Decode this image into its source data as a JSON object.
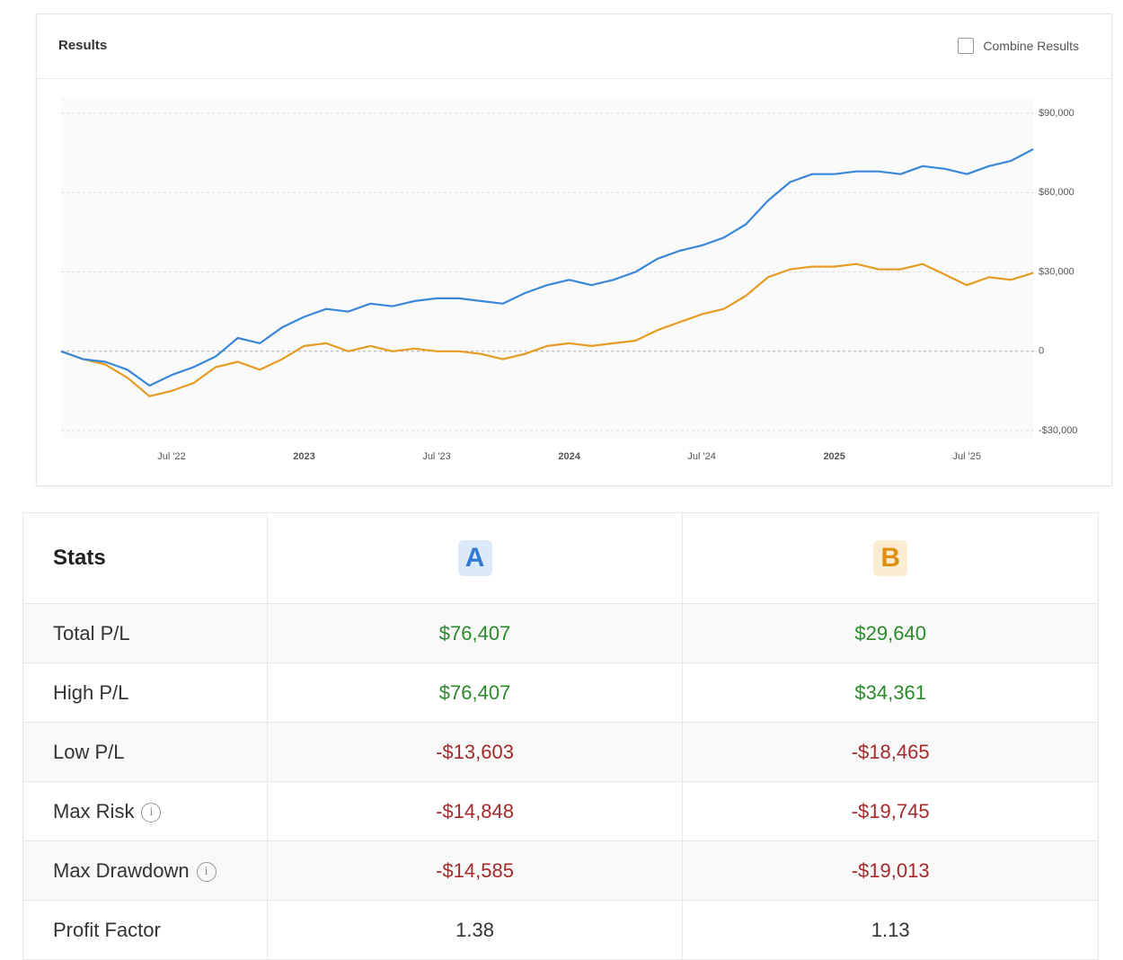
{
  "header": {
    "title": "Results",
    "combine_label": "Combine Results"
  },
  "chart_data": {
    "type": "line",
    "x": [
      "2022-02",
      "2022-03",
      "2022-04",
      "2022-05",
      "2022-06",
      "2022-07",
      "2022-08",
      "2022-09",
      "2022-10",
      "2022-11",
      "2022-12",
      "2023-01",
      "2023-02",
      "2023-03",
      "2023-04",
      "2023-05",
      "2023-06",
      "2023-07",
      "2023-08",
      "2023-09",
      "2023-10",
      "2023-11",
      "2023-12",
      "2024-01",
      "2024-02",
      "2024-03",
      "2024-04",
      "2024-05",
      "2024-06",
      "2024-07",
      "2024-08",
      "2024-09",
      "2024-10",
      "2024-11",
      "2024-12",
      "2025-01",
      "2025-02",
      "2025-03",
      "2025-04",
      "2025-05",
      "2025-06",
      "2025-07",
      "2025-08",
      "2025-09",
      "2025-10"
    ],
    "series": [
      {
        "name": "A",
        "color": "#3a87d9",
        "values": [
          0,
          -3000,
          -4000,
          -7000,
          -13000,
          -9000,
          -6000,
          -2000,
          5000,
          3000,
          9000,
          13000,
          16000,
          15000,
          18000,
          17000,
          19000,
          20000,
          20000,
          19000,
          18000,
          22000,
          25000,
          27000,
          25000,
          27000,
          30000,
          35000,
          38000,
          40000,
          43000,
          48000,
          57000,
          64000,
          67000,
          67000,
          68000,
          68000,
          67000,
          70000,
          69000,
          67000,
          70000,
          72000,
          76407
        ]
      },
      {
        "name": "B",
        "color": "#e69b22",
        "values": [
          0,
          -3000,
          -5000,
          -10000,
          -17000,
          -15000,
          -12000,
          -6000,
          -4000,
          -7000,
          -3000,
          2000,
          3000,
          0,
          2000,
          0,
          1000,
          0,
          0,
          -1000,
          -3000,
          -1000,
          2000,
          3000,
          2000,
          3000,
          4000,
          8000,
          11000,
          14000,
          16000,
          21000,
          28000,
          31000,
          32000,
          32000,
          33000,
          31000,
          31000,
          33000,
          29000,
          25000,
          28000,
          27000,
          29640
        ]
      }
    ],
    "xlim": [
      "2022-02",
      "2025-10"
    ],
    "xticks": [
      {
        "value": "2022-07",
        "label": "Jul '22"
      },
      {
        "value": "2023-01",
        "label": "2023"
      },
      {
        "value": "2023-07",
        "label": "Jul '23"
      },
      {
        "value": "2024-01",
        "label": "2024"
      },
      {
        "value": "2024-07",
        "label": "Jul '24"
      },
      {
        "value": "2025-01",
        "label": "2025"
      },
      {
        "value": "2025-07",
        "label": "Jul '25"
      }
    ],
    "ylim": [
      -30000,
      90000
    ],
    "yticks": [
      {
        "value": -30000,
        "label": "-$30,000"
      },
      0,
      {
        "value": 30000,
        "label": "$30,000"
      },
      {
        "value": 60000,
        "label": "$60,000"
      },
      {
        "value": 90000,
        "label": "$90,000"
      }
    ],
    "grid": true
  },
  "table": {
    "header": "Stats",
    "rows": [
      [
        "Total P/L",
        "$76,407",
        "$29,640"
      ],
      [
        "High P/L",
        "$76,407",
        "$34,361"
      ],
      [
        "Low P/L",
        "-$13,603",
        "-$18,465"
      ],
      [
        "Max Risk",
        "-$14,848",
        "-$19,745"
      ],
      [
        "Max Drawdown",
        "-$14,585",
        "-$19,013"
      ],
      [
        "Profit Factor",
        "1.38",
        "1.13"
      ]
    ]
  }
}
